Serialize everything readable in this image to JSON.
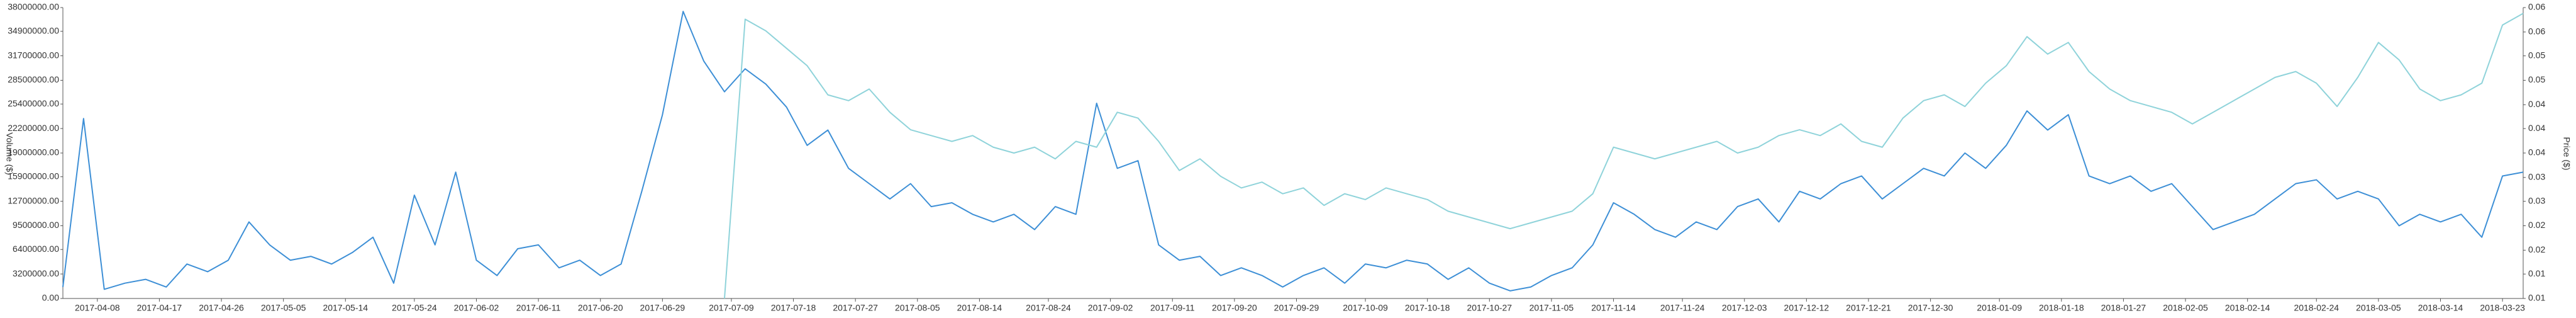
{
  "chart_data": {
    "type": "line",
    "yaxis_label": "Volume ($)",
    "y2axis_label": "Price ($)",
    "x": [
      "2017-04-03",
      "2017-04-06",
      "2017-04-09",
      "2017-04-12",
      "2017-04-15",
      "2017-04-18",
      "2017-04-21",
      "2017-04-24",
      "2017-04-27",
      "2017-04-30",
      "2017-05-03",
      "2017-05-06",
      "2017-05-09",
      "2017-05-12",
      "2017-05-15",
      "2017-05-18",
      "2017-05-21",
      "2017-05-24",
      "2017-05-27",
      "2017-05-30",
      "2017-06-02",
      "2017-06-05",
      "2017-06-08",
      "2017-06-11",
      "2017-06-14",
      "2017-06-17",
      "2017-06-20",
      "2017-06-23",
      "2017-06-26",
      "2017-06-29",
      "2017-07-02",
      "2017-07-05",
      "2017-07-08",
      "2017-07-11",
      "2017-07-14",
      "2017-07-17",
      "2017-07-20",
      "2017-07-23",
      "2017-07-26",
      "2017-07-29",
      "2017-08-01",
      "2017-08-04",
      "2017-08-07",
      "2017-08-10",
      "2017-08-13",
      "2017-08-16",
      "2017-08-19",
      "2017-08-22",
      "2017-08-25",
      "2017-08-28",
      "2017-08-31",
      "2017-09-03",
      "2017-09-06",
      "2017-09-09",
      "2017-09-12",
      "2017-09-15",
      "2017-09-18",
      "2017-09-21",
      "2017-09-24",
      "2017-09-27",
      "2017-09-30",
      "2017-10-03",
      "2017-10-06",
      "2017-10-09",
      "2017-10-12",
      "2017-10-15",
      "2017-10-18",
      "2017-10-21",
      "2017-10-24",
      "2017-10-27",
      "2017-10-30",
      "2017-11-02",
      "2017-11-05",
      "2017-11-08",
      "2017-11-11",
      "2017-11-14",
      "2017-11-17",
      "2017-11-20",
      "2017-11-23",
      "2017-11-26",
      "2017-11-29",
      "2017-12-02",
      "2017-12-05",
      "2017-12-08",
      "2017-12-11",
      "2017-12-14",
      "2017-12-17",
      "2017-12-20",
      "2017-12-23",
      "2017-12-26",
      "2017-12-29",
      "2018-01-01",
      "2018-01-04",
      "2018-01-07",
      "2018-01-10",
      "2018-01-13",
      "2018-01-16",
      "2018-01-19",
      "2018-01-22",
      "2018-01-25",
      "2018-01-28",
      "2018-01-31",
      "2018-02-03",
      "2018-02-06",
      "2018-02-09",
      "2018-02-12",
      "2018-02-15",
      "2018-02-18",
      "2018-02-21",
      "2018-02-24",
      "2018-02-27",
      "2018-03-02",
      "2018-03-05",
      "2018-03-08",
      "2018-03-11",
      "2018-03-14",
      "2018-03-17",
      "2018-03-20",
      "2018-03-23",
      "2018-03-26"
    ],
    "xlim": [
      "2017-04-03",
      "2018-03-26"
    ],
    "xticks": [
      "2017-04-08",
      "2017-04-17",
      "2017-04-26",
      "2017-05-05",
      "2017-05-14",
      "2017-05-24",
      "2017-06-02",
      "2017-06-11",
      "2017-06-20",
      "2017-06-29",
      "2017-07-09",
      "2017-07-18",
      "2017-07-27",
      "2017-08-05",
      "2017-08-14",
      "2017-08-24",
      "2017-09-02",
      "2017-09-11",
      "2017-09-20",
      "2017-09-29",
      "2017-10-09",
      "2017-10-18",
      "2017-10-27",
      "2017-11-05",
      "2017-11-14",
      "2017-11-24",
      "2017-12-03",
      "2017-12-12",
      "2017-12-21",
      "2017-12-30",
      "2018-01-09",
      "2018-01-18",
      "2018-01-27",
      "2018-02-05",
      "2018-02-14",
      "2018-02-24",
      "2018-03-05",
      "2018-03-14",
      "2018-03-23"
    ],
    "ylim": [
      0,
      38000000
    ],
    "yticks": [
      {
        "value": 0,
        "label": "0.00"
      },
      {
        "value": 3200000,
        "label": "3200000.00"
      },
      {
        "value": 6400000,
        "label": "6400000.00"
      },
      {
        "value": 9500000,
        "label": "9500000.00"
      },
      {
        "value": 12700000,
        "label": "12700000.00"
      },
      {
        "value": 15900000,
        "label": "15900000.00"
      },
      {
        "value": 19000000,
        "label": "19000000.00"
      },
      {
        "value": 22200000,
        "label": "22200000.00"
      },
      {
        "value": 25400000,
        "label": "25400000.00"
      },
      {
        "value": 28500000,
        "label": "28500000.00"
      },
      {
        "value": 31700000,
        "label": "31700000.00"
      },
      {
        "value": 34900000,
        "label": "34900000.00"
      },
      {
        "value": 38000000,
        "label": "38000000.00"
      }
    ],
    "y2lim": [
      0.01,
      0.06
    ],
    "y2ticks": [
      0.01,
      {
        "value": 0.0142,
        "label": "0.01"
      },
      {
        "value": 0.0183,
        "label": "0.02"
      },
      {
        "value": 0.0225,
        "label": "0.02"
      },
      {
        "value": 0.0267,
        "label": "0.03"
      },
      {
        "value": 0.0308,
        "label": "0.03"
      },
      {
        "value": 0.035,
        "label": "0.04"
      },
      {
        "value": 0.0392,
        "label": "0.04"
      },
      {
        "value": 0.0433,
        "label": "0.04"
      },
      {
        "value": 0.0475,
        "label": "0.05"
      },
      {
        "value": 0.0517,
        "label": "0.05"
      },
      {
        "value": 0.0558,
        "label": "0.06"
      },
      0.06
    ],
    "series": [
      {
        "name": "Volume",
        "color": "#3d8fd6",
        "axis": "y",
        "values": [
          1500000,
          23500000,
          1200000,
          2000000,
          2500000,
          1500000,
          4500000,
          3500000,
          5000000,
          10000000,
          7000000,
          5000000,
          5500000,
          4500000,
          6000000,
          8000000,
          2000000,
          13500000,
          7000000,
          16500000,
          5000000,
          3000000,
          6500000,
          7000000,
          4000000,
          5000000,
          3000000,
          4500000,
          14000000,
          24000000,
          37500000,
          31000000,
          27000000,
          30000000,
          28000000,
          25000000,
          20000000,
          22000000,
          17000000,
          15000000,
          13000000,
          15000000,
          12000000,
          12500000,
          11000000,
          10000000,
          11000000,
          9000000,
          12000000,
          11000000,
          25500000,
          17000000,
          18000000,
          7000000,
          5000000,
          5500000,
          3000000,
          4000000,
          3000000,
          1500000,
          3000000,
          4000000,
          2000000,
          4500000,
          4000000,
          5000000,
          4500000,
          2500000,
          4000000,
          2000000,
          1000000,
          1500000,
          3000000,
          4000000,
          7000000,
          12500000,
          11000000,
          9000000,
          8000000,
          10000000,
          9000000,
          12000000,
          13000000,
          10000000,
          14000000,
          13000000,
          15000000,
          16000000,
          13000000,
          15000000,
          17000000,
          16000000,
          19000000,
          17000000,
          20000000,
          24500000,
          22000000,
          24000000,
          16000000,
          15000000,
          16000000,
          14000000,
          15000000,
          12000000,
          9000000,
          10000000,
          11000000,
          13000000,
          15000000,
          15500000,
          13000000,
          14000000,
          13000000,
          9500000,
          11000000,
          10000000,
          11000000,
          8000000,
          16000000,
          16500000
        ]
      },
      {
        "name": "Price",
        "color": "#8fd3da",
        "axis": "y2",
        "values": [
          null,
          null,
          null,
          null,
          null,
          null,
          null,
          null,
          null,
          null,
          null,
          null,
          null,
          null,
          null,
          null,
          null,
          null,
          null,
          null,
          null,
          null,
          null,
          null,
          null,
          null,
          null,
          null,
          null,
          null,
          null,
          null,
          0.01,
          0.058,
          0.056,
          0.053,
          0.05,
          0.045,
          0.044,
          0.046,
          0.042,
          0.039,
          0.038,
          0.037,
          0.038,
          0.036,
          0.035,
          0.036,
          0.034,
          0.037,
          0.036,
          0.042,
          0.041,
          0.037,
          0.032,
          0.034,
          0.031,
          0.029,
          0.03,
          0.028,
          0.029,
          0.026,
          0.028,
          0.027,
          0.029,
          0.028,
          0.027,
          0.025,
          0.024,
          0.023,
          0.022,
          0.023,
          0.024,
          0.025,
          0.028,
          0.036,
          0.035,
          0.034,
          0.035,
          0.036,
          0.037,
          0.035,
          0.036,
          0.038,
          0.039,
          0.038,
          0.04,
          0.037,
          0.036,
          0.041,
          0.044,
          0.045,
          0.043,
          0.047,
          0.05,
          0.055,
          0.052,
          0.054,
          0.049,
          0.046,
          0.044,
          0.043,
          0.042,
          0.04,
          0.042,
          0.044,
          0.046,
          0.048,
          0.049,
          0.047,
          0.043,
          0.048,
          0.054,
          0.051,
          0.046,
          0.044,
          0.045,
          0.047,
          0.057,
          0.059
        ]
      }
    ]
  }
}
